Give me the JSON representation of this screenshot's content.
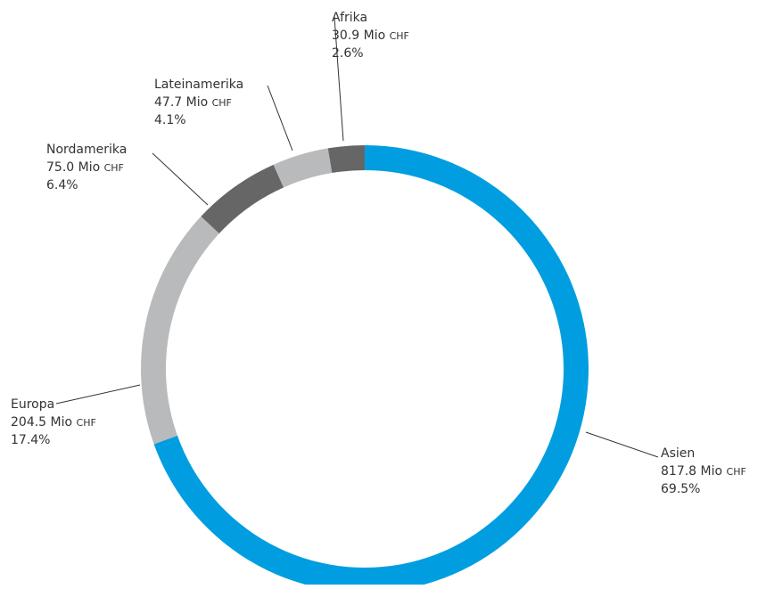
{
  "chart_data": {
    "type": "pie",
    "subtype": "donut",
    "unit": "Mio",
    "currency": "CHF",
    "slices": [
      {
        "name": "Asien",
        "value": 817.8,
        "value_label": "817.8 Mio",
        "percent_label": "69.5%",
        "color": "#009ee0"
      },
      {
        "name": "Europa",
        "value": 204.5,
        "value_label": "204.5 Mio",
        "percent_label": "17.4%",
        "color": "#b9babc"
      },
      {
        "name": "Nordamerika",
        "value": 75.0,
        "value_label": "75.0 Mio",
        "percent_label": "6.4%",
        "color": "#666666"
      },
      {
        "name": "Lateinamerika",
        "value": 47.7,
        "value_label": "47.7 Mio",
        "percent_label": "4.1%",
        "color": "#b9babc"
      },
      {
        "name": "Afrika",
        "value": 30.9,
        "value_label": "30.9 Mio",
        "percent_label": "2.6%",
        "color": "#666666"
      }
    ]
  }
}
